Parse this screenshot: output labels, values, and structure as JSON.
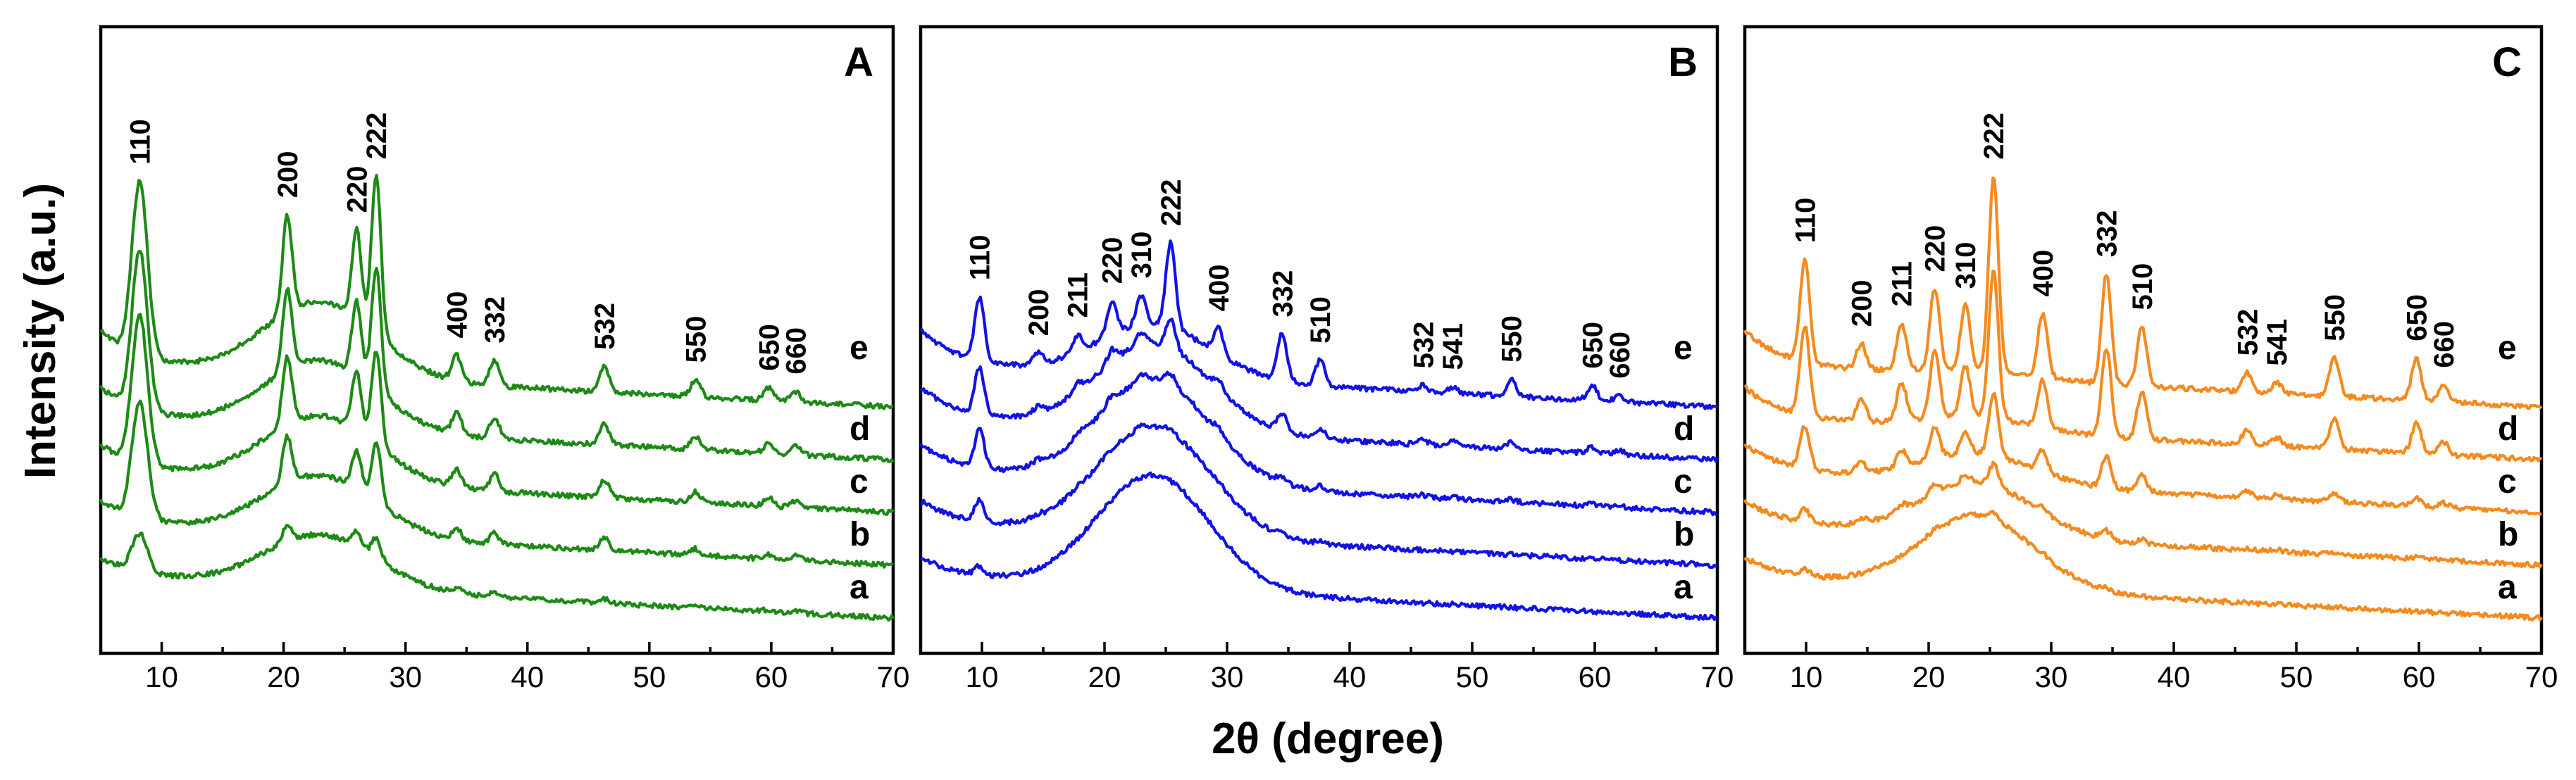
{
  "chart_data": {
    "type": "line",
    "shared_ylabel": "Intensity (a.u.)",
    "shared_xlabel": "2θ (degree)",
    "xlim": [
      5,
      70
    ],
    "xticks": [
      "10",
      "20",
      "30",
      "40",
      "50",
      "60",
      "70"
    ],
    "curve_labels": [
      "a",
      "b",
      "c",
      "d",
      "e"
    ],
    "panels": [
      {
        "label": "A",
        "color": "#1e8a16",
        "peaks": [
          {
            "hkl": "110",
            "x": 8.2,
            "h": [
              0.18,
              0.55,
              0.7,
              0.75,
              0.82
            ]
          },
          {
            "hkl": "200",
            "x": 20.3,
            "h": [
              0.08,
              0.22,
              0.32,
              0.38,
              0.46
            ]
          },
          {
            "hkl": "220",
            "x": 26.0,
            "h": [
              0.07,
              0.18,
              0.28,
              0.35,
              0.42
            ]
          },
          {
            "hkl": "222",
            "x": 27.6,
            "h": [
              0.1,
              0.28,
              0.45,
              0.58,
              0.75
            ]
          },
          {
            "hkl": "400",
            "x": 34.2,
            "h": [
              0.02,
              0.05,
              0.08,
              0.1,
              0.12
            ]
          },
          {
            "hkl": "332",
            "x": 37.3,
            "h": [
              0.02,
              0.05,
              0.08,
              0.1,
              0.12
            ]
          },
          {
            "hkl": "532",
            "x": 46.3,
            "h": [
              0.02,
              0.06,
              0.08,
              0.1,
              0.12
            ]
          },
          {
            "hkl": "550",
            "x": 53.8,
            "h": [
              0.01,
              0.03,
              0.05,
              0.06,
              0.08
            ]
          },
          {
            "hkl": "650",
            "x": 59.8,
            "h": [
              0.01,
              0.02,
              0.04,
              0.05,
              0.06
            ]
          },
          {
            "hkl": "660",
            "x": 62.0,
            "h": [
              0.01,
              0.02,
              0.03,
              0.04,
              0.05
            ]
          }
        ],
        "amorphous_hump": {
          "center": 23,
          "h": [
            0.4,
            0.45,
            0.5,
            0.52,
            0.56
          ]
        }
      },
      {
        "label": "B",
        "color": "#1212e6",
        "peaks": [
          {
            "hkl": "110",
            "x": 9.8,
            "h": [
              0.04,
              0.1,
              0.18,
              0.22,
              0.3
            ]
          },
          {
            "hkl": "200",
            "x": 14.6,
            "h": [
              0.0,
              0.01,
              0.02,
              0.03,
              0.05
            ]
          },
          {
            "hkl": "211",
            "x": 17.8,
            "h": [
              0.0,
              0.01,
              0.02,
              0.04,
              0.08
            ]
          },
          {
            "hkl": "220",
            "x": 20.6,
            "h": [
              0.0,
              0.01,
              0.03,
              0.06,
              0.16
            ]
          },
          {
            "hkl": "310",
            "x": 23.0,
            "h": [
              0.0,
              0.01,
              0.03,
              0.06,
              0.14
            ]
          },
          {
            "hkl": "222",
            "x": 25.4,
            "h": [
              0.0,
              0.02,
              0.05,
              0.14,
              0.4
            ]
          },
          {
            "hkl": "400",
            "x": 29.3,
            "h": [
              0.0,
              0.01,
              0.03,
              0.05,
              0.12
            ]
          },
          {
            "hkl": "332",
            "x": 34.5,
            "h": [
              0.0,
              0.01,
              0.03,
              0.08,
              0.22
            ]
          },
          {
            "hkl": "510",
            "x": 37.6,
            "h": [
              0.0,
              0.01,
              0.02,
              0.04,
              0.12
            ]
          },
          {
            "hkl": "532",
            "x": 46.0,
            "h": [
              0.0,
              0.0,
              0.01,
              0.02,
              0.03
            ]
          },
          {
            "hkl": "541",
            "x": 48.4,
            "h": [
              0.0,
              0.0,
              0.01,
              0.02,
              0.03
            ]
          },
          {
            "hkl": "550",
            "x": 53.2,
            "h": [
              0.0,
              0.0,
              0.01,
              0.03,
              0.08
            ]
          },
          {
            "hkl": "650",
            "x": 59.8,
            "h": [
              0.0,
              0.0,
              0.01,
              0.03,
              0.07
            ]
          },
          {
            "hkl": "660",
            "x": 62.0,
            "h": [
              0.0,
              0.0,
              0.01,
              0.02,
              0.03
            ]
          }
        ],
        "amorphous_hump": {
          "center": 24,
          "h": [
            0.85,
            0.82,
            0.78,
            0.65,
            0.4
          ]
        }
      },
      {
        "label": "C",
        "color": "#f58a1f",
        "peaks": [
          {
            "hkl": "110",
            "x": 9.9,
            "h": [
              0.03,
              0.06,
              0.2,
              0.42,
              0.48
            ]
          },
          {
            "hkl": "200",
            "x": 14.5,
            "h": [
              0.0,
              0.02,
              0.05,
              0.1,
              0.12
            ]
          },
          {
            "hkl": "211",
            "x": 17.8,
            "h": [
              0.0,
              0.03,
              0.08,
              0.18,
              0.22
            ]
          },
          {
            "hkl": "220",
            "x": 20.5,
            "h": [
              0.01,
              0.05,
              0.15,
              0.32,
              0.38
            ]
          },
          {
            "hkl": "310",
            "x": 23.0,
            "h": [
              0.01,
              0.04,
              0.1,
              0.24,
              0.3
            ]
          },
          {
            "hkl": "222",
            "x": 25.3,
            "h": [
              0.03,
              0.1,
              0.3,
              0.7,
              0.92
            ]
          },
          {
            "hkl": "400",
            "x": 29.3,
            "h": [
              0.01,
              0.03,
              0.1,
              0.22,
              0.3
            ]
          },
          {
            "hkl": "332",
            "x": 34.5,
            "h": [
              0.01,
              0.04,
              0.15,
              0.42,
              0.52
            ]
          },
          {
            "hkl": "510",
            "x": 37.4,
            "h": [
              0.0,
              0.02,
              0.08,
              0.22,
              0.28
            ]
          },
          {
            "hkl": "532",
            "x": 46.0,
            "h": [
              0.0,
              0.01,
              0.03,
              0.07,
              0.09
            ]
          },
          {
            "hkl": "541",
            "x": 48.4,
            "h": [
              0.0,
              0.01,
              0.02,
              0.04,
              0.05
            ]
          },
          {
            "hkl": "550",
            "x": 53.1,
            "h": [
              0.0,
              0.01,
              0.04,
              0.14,
              0.18
            ]
          },
          {
            "hkl": "650",
            "x": 59.8,
            "h": [
              0.0,
              0.01,
              0.04,
              0.14,
              0.2
            ]
          },
          {
            "hkl": "660",
            "x": 62.0,
            "h": [
              0.0,
              0.01,
              0.02,
              0.06,
              0.08
            ]
          }
        ],
        "amorphous_hump": {
          "center": 24,
          "h": [
            0.55,
            0.4,
            0.22,
            0.1,
            0.06
          ]
        }
      }
    ]
  }
}
